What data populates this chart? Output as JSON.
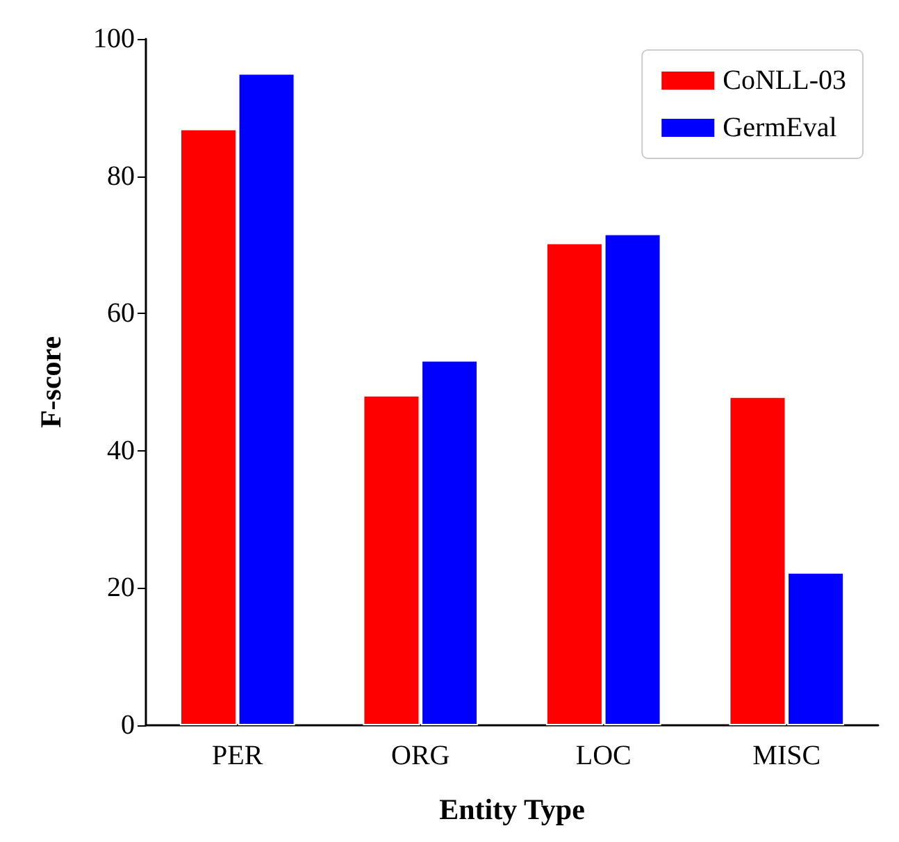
{
  "chart_data": {
    "type": "bar",
    "xlabel": "Entity Type",
    "ylabel": "F-score",
    "categories": [
      "PER",
      "ORG",
      "LOC",
      "MISC"
    ],
    "series": [
      {
        "name": "CoNLL-03",
        "color": "#ff0000",
        "values": [
          86.9,
          48.1,
          70.3,
          47.9
        ]
      },
      {
        "name": "GermEval",
        "color": "#0000ff",
        "values": [
          95.0,
          53.2,
          71.6,
          22.3
        ]
      }
    ],
    "ylim": [
      0,
      100
    ],
    "yticks": [
      0,
      20,
      40,
      60,
      80,
      100
    ],
    "grid": false,
    "legend": "top right"
  }
}
